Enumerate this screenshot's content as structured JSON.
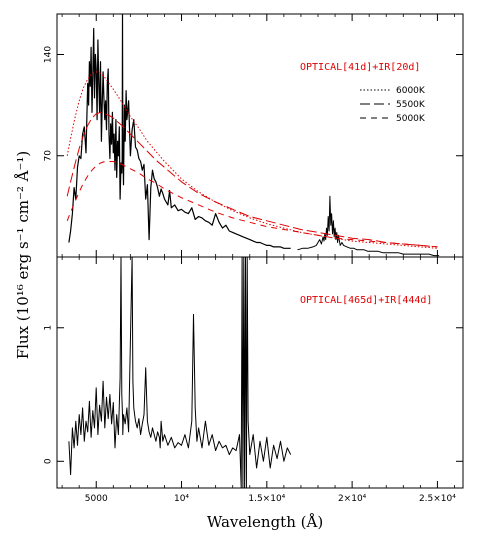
{
  "chart_data": [
    {
      "type": "line",
      "panel": "top",
      "annotation": "OPTICAL[41d]+IR[20d]",
      "annotation_color": "#e00000",
      "xlim": [
        2700,
        26500
      ],
      "ylim": [
        0,
        168
      ],
      "x_ticks": [
        5000,
        10000,
        15000,
        20000,
        25000
      ],
      "x_tick_labels": [
        "5000",
        "10⁴",
        "1.5×10⁴",
        "2×10⁴",
        "2.5×10⁴"
      ],
      "y_ticks": [
        0,
        70,
        140
      ],
      "y_tick_labels": [
        "",
        "70",
        "140"
      ],
      "series": [
        {
          "style": "solid",
          "color": "#000000",
          "width": 1.2,
          "x": [
            3400,
            3500,
            3600,
            3700,
            3800,
            3900,
            4000,
            4100,
            4200,
            4300,
            4400,
            4500,
            4550,
            4600,
            4650,
            4700,
            4750,
            4800,
            4850,
            4900,
            4950,
            5000,
            5050,
            5100,
            5150,
            5200,
            5250,
            5300,
            5350,
            5400,
            5450,
            5500,
            5550,
            5600,
            5650,
            5700,
            5750,
            5800,
            5850,
            5900,
            5950,
            6000,
            6050,
            6100,
            6150,
            6200,
            6250,
            6300,
            6350,
            6400,
            6450,
            6500,
            6520,
            6540,
            6560,
            6580,
            6600,
            6650,
            6700,
            6750,
            6800,
            6900,
            7000,
            7100,
            7200,
            7300,
            7400,
            7500,
            7600,
            7700,
            7800,
            7900,
            8000,
            8100,
            8200,
            8300,
            8400,
            8500,
            8600,
            8700,
            8800,
            8900,
            9000,
            9100,
            9200,
            9300,
            9400,
            9600,
            9800,
            10000,
            10200,
            10400,
            10600,
            10800,
            11000,
            11200,
            11400,
            11600,
            11800,
            12000,
            12200,
            12400,
            12600,
            12800,
            13000,
            13200,
            13400,
            13600,
            13800,
            14000,
            14200,
            14400,
            14600,
            14800,
            15000,
            15200,
            15400,
            15600,
            15800,
            16000,
            16200,
            16400
          ],
          "y": [
            10,
            18,
            30,
            48,
            40,
            62,
            70,
            68,
            85,
            90,
            72,
            120,
            105,
            135,
            118,
            145,
            100,
            125,
            158,
            110,
            140,
            130,
            95,
            150,
            120,
            100,
            135,
            80,
            105,
            128,
            110,
            95,
            108,
            88,
            120,
            130,
            85,
            68,
            92,
            78,
            100,
            72,
            85,
            60,
            95,
            55,
            80,
            70,
            90,
            40,
            65,
            58,
            68,
            168,
            80,
            62,
            50,
            105,
            80,
            115,
            95,
            108,
            70,
            88,
            95,
            76,
            74,
            68,
            66,
            60,
            64,
            40,
            50,
            12,
            48,
            60,
            54,
            52,
            48,
            42,
            47,
            44,
            40,
            38,
            36,
            46,
            34,
            36,
            32,
            33,
            31,
            30,
            34,
            26,
            28,
            27,
            25,
            24,
            22,
            30,
            24,
            20,
            22,
            18,
            17,
            16,
            15,
            14,
            13,
            12,
            11,
            10,
            10,
            9,
            8,
            8,
            7,
            7,
            7,
            6,
            6,
            6
          ]
        },
        {
          "style": "solid",
          "color": "#000000",
          "width": 1.0,
          "x": [
            16800,
            17100,
            17400,
            17700,
            17900,
            18000,
            18100,
            18200,
            18300,
            18350,
            18400,
            18450,
            18500,
            18550,
            18600,
            18650,
            18700,
            18750,
            18800,
            18850,
            18900,
            18950,
            19000,
            19050,
            19100,
            19150,
            19200,
            19300,
            19400,
            19500,
            19700,
            19900,
            20100,
            20300,
            20500,
            20700,
            20900,
            21200,
            21500,
            21800,
            22100,
            22400,
            22700,
            23000,
            23300,
            23600,
            23900,
            24200,
            24500,
            24800,
            25100
          ],
          "y": [
            5,
            6,
            6,
            7,
            8,
            10,
            12,
            9,
            14,
            11,
            16,
            12,
            20,
            15,
            28,
            18,
            42,
            22,
            30,
            16,
            25,
            14,
            20,
            12,
            17,
            10,
            15,
            8,
            10,
            8,
            7,
            6,
            6,
            5,
            5,
            5,
            4,
            4,
            4,
            3,
            3,
            3,
            3,
            2,
            2,
            2,
            2,
            2,
            2,
            1,
            1
          ]
        },
        {
          "name": "6000K",
          "style": "dotted",
          "color": "#e00000",
          "width": 1.0,
          "x": [
            3300,
            3500,
            3750,
            4000,
            4250,
            4500,
            4750,
            5000,
            5250,
            5500,
            5750,
            6000,
            6500,
            7000,
            7500,
            8000,
            8500,
            9000,
            9500,
            10000,
            11000,
            12000,
            13000,
            14000,
            15000,
            16000,
            17000,
            18000,
            19000,
            20000,
            21000,
            22000,
            23000,
            24000,
            25000
          ],
          "y": [
            70,
            82,
            96,
            108,
            117,
            123,
            127,
            128,
            127,
            124,
            120,
            116,
            107,
            97,
            89,
            80,
            73,
            66,
            60,
            54,
            45,
            38,
            32,
            27,
            23,
            20,
            17,
            15,
            13,
            11,
            10,
            9,
            8,
            7,
            6
          ]
        },
        {
          "name": "5500K",
          "style": "longdash",
          "color": "#e00000",
          "width": 1.0,
          "x": [
            3300,
            3500,
            3750,
            4000,
            4250,
            4500,
            4750,
            5000,
            5250,
            5500,
            5750,
            6000,
            6500,
            7000,
            7500,
            8000,
            8500,
            9000,
            9500,
            10000,
            11000,
            12000,
            13000,
            14000,
            15000,
            16000,
            17000,
            18000,
            19000,
            20000,
            21000,
            22000,
            23000,
            24000,
            25000
          ],
          "y": [
            42,
            52,
            64,
            75,
            84,
            91,
            96,
            99,
            100,
            99,
            98,
            96,
            91,
            85,
            79,
            73,
            67,
            62,
            57,
            52,
            44,
            38,
            33,
            28,
            25,
            22,
            19,
            17,
            15,
            13,
            12,
            10,
            9,
            8,
            7
          ]
        },
        {
          "name": "5000K",
          "style": "dash",
          "color": "#e00000",
          "width": 1.0,
          "x": [
            3300,
            3500,
            3750,
            4000,
            4250,
            4500,
            4750,
            5000,
            5250,
            5500,
            5750,
            6000,
            6500,
            7000,
            7500,
            8000,
            8500,
            9000,
            9500,
            10000,
            11000,
            12000,
            13000,
            14000,
            15000,
            16000,
            17000,
            18000,
            19000,
            20000,
            21000,
            22000,
            23000,
            24000,
            25000
          ],
          "y": [
            25,
            31,
            38,
            45,
            51,
            56,
            60,
            63,
            65,
            66,
            66,
            66,
            64,
            61,
            58,
            54,
            51,
            47,
            44,
            41,
            36,
            31,
            27,
            24,
            21,
            19,
            17,
            15,
            13,
            12,
            11,
            10,
            9,
            8,
            7
          ]
        }
      ],
      "legend": [
        {
          "label": "6000K",
          "style": "dotted"
        },
        {
          "label": "5500K",
          "style": "longdash"
        },
        {
          "label": "5000K",
          "style": "dash"
        }
      ]
    },
    {
      "type": "line",
      "panel": "bottom",
      "annotation": "OPTICAL[465d]+IR[444d]",
      "annotation_color": "#e00000",
      "xlim": [
        2700,
        26500
      ],
      "ylim": [
        -0.2,
        1.53
      ],
      "x_ticks": [
        5000,
        10000,
        15000,
        20000,
        25000
      ],
      "x_tick_labels": [
        "5000",
        "10⁴",
        "1.5×10⁴",
        "2×10⁴",
        "2.5×10⁴"
      ],
      "y_ticks": [
        0,
        1
      ],
      "y_tick_labels": [
        "0",
        "1"
      ],
      "series": [
        {
          "style": "solid",
          "color": "#000000",
          "width": 1.0,
          "x": [
            3400,
            3500,
            3600,
            3700,
            3800,
            3900,
            4000,
            4100,
            4200,
            4300,
            4400,
            4500,
            4600,
            4700,
            4800,
            4900,
            5000,
            5100,
            5200,
            5300,
            5400,
            5500,
            5600,
            5700,
            5800,
            5900,
            6000,
            6100,
            6200,
            6300,
            6400,
            6450,
            6500,
            6550,
            6560,
            6600,
            6700,
            6800,
            6900,
            7000,
            7100,
            7150,
            7200,
            7250,
            7300,
            7400,
            7500,
            7600,
            7700,
            7800,
            7900,
            8000,
            8100,
            8200,
            8300,
            8400,
            8500,
            8600,
            8700,
            8750,
            8800,
            8900,
            9000,
            9200,
            9400,
            9600,
            9800,
            10000,
            10200,
            10400,
            10600,
            10700,
            10800,
            10900,
            11000,
            11200,
            11400,
            11600,
            11800,
            12000,
            12200,
            12400,
            12600,
            12800,
            13000,
            13200,
            13400,
            13500,
            13550,
            13600,
            13650,
            13700,
            13750,
            13800,
            13850,
            13900,
            14000,
            14200,
            14400,
            14600,
            14800,
            15000,
            15200,
            15400,
            15600,
            15800,
            16000,
            16200,
            16400
          ],
          "y": [
            0.15,
            -0.1,
            0.25,
            0.1,
            0.3,
            0.12,
            0.35,
            0.2,
            0.4,
            0.15,
            0.3,
            0.22,
            0.45,
            0.18,
            0.38,
            0.25,
            0.55,
            0.2,
            0.42,
            0.3,
            0.6,
            0.25,
            0.48,
            0.32,
            0.5,
            0.28,
            0.44,
            0.1,
            0.35,
            0.2,
            0.62,
            1.53,
            0.5,
            0.3,
            0.2,
            0.35,
            0.28,
            0.4,
            0.22,
            0.9,
            1.53,
            0.6,
            0.4,
            0.35,
            0.3,
            0.25,
            0.32,
            0.2,
            0.28,
            0.35,
            0.7,
            0.3,
            0.22,
            0.18,
            0.25,
            0.2,
            0.15,
            0.22,
            0.18,
            0.1,
            0.3,
            0.15,
            0.2,
            0.12,
            0.18,
            0.1,
            0.14,
            0.12,
            0.2,
            0.1,
            0.3,
            1.1,
            0.4,
            0.15,
            0.25,
            0.1,
            0.3,
            0.12,
            0.2,
            0.08,
            0.15,
            0.1,
            0.12,
            0.05,
            0.1,
            0.08,
            0.2,
            -0.2,
            1.53,
            -0.2,
            1.53,
            -0.2,
            1.53,
            -0.2,
            1.53,
            0.3,
            0.05,
            0.2,
            -0.05,
            0.15,
            0.0,
            0.18,
            -0.05,
            0.12,
            0.02,
            0.15,
            0.0,
            0.1,
            0.05
          ]
        }
      ]
    }
  ],
  "shared_axes": {
    "xlabel": "Wavelength (Å)",
    "ylabel": "Flux (10¹⁶ erg s⁻¹ cm⁻² Å⁻¹)"
  }
}
